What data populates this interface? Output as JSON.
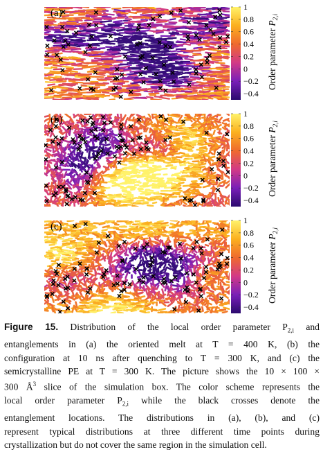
{
  "figure": {
    "panels": [
      {
        "label": "(a)",
        "style": "oriented"
      },
      {
        "label": "(b)",
        "style": "quenched"
      },
      {
        "label": "(c)",
        "style": "semicrystalline"
      }
    ],
    "colorbar": {
      "ticks": [
        "1",
        "0.8",
        "0.6",
        "0.4",
        "0.2",
        "0",
        "−0.2",
        "−0.4"
      ],
      "tick_values": [
        1,
        0.8,
        0.6,
        0.4,
        0.2,
        0,
        -0.2,
        -0.4
      ],
      "range": [
        -0.5,
        1.0
      ],
      "label_main": "Order parameter ",
      "label_symbol": "P",
      "label_subscript": "2,i",
      "colors": [
        "#2a0a6e",
        "#7a1fb8",
        "#d23a86",
        "#ef6a2e",
        "#fbb01f",
        "#fff26a"
      ]
    },
    "marker_color": "#000000"
  },
  "caption": {
    "title": "Figure 15.",
    "lines": [
      "Distribution of the local order parameter P",
      "entanglements in (a) the oriented melt at T = 400 K, (b) the",
      "configuration at 10 ns after quenching to T = 300 K, and (c) the",
      "semicrystalline PE at T = 300 K. The picture shows the 10 × 100 ×",
      "300 Å",
      "local order parameter P",
      "entanglement locations. The distributions in (a), (b), and (c)",
      "represent typical distributions at three different time points during",
      "crystallization but do not cover the same region in the simulation cell."
    ],
    "line1_sub": "2,i",
    "line1_tail": " and",
    "line5_sup": "3",
    "line5_tail": " slice of the simulation box. The color scheme represents the",
    "line6_sub": "2,i",
    "line6_tail": " while the black crosses denote the"
  }
}
